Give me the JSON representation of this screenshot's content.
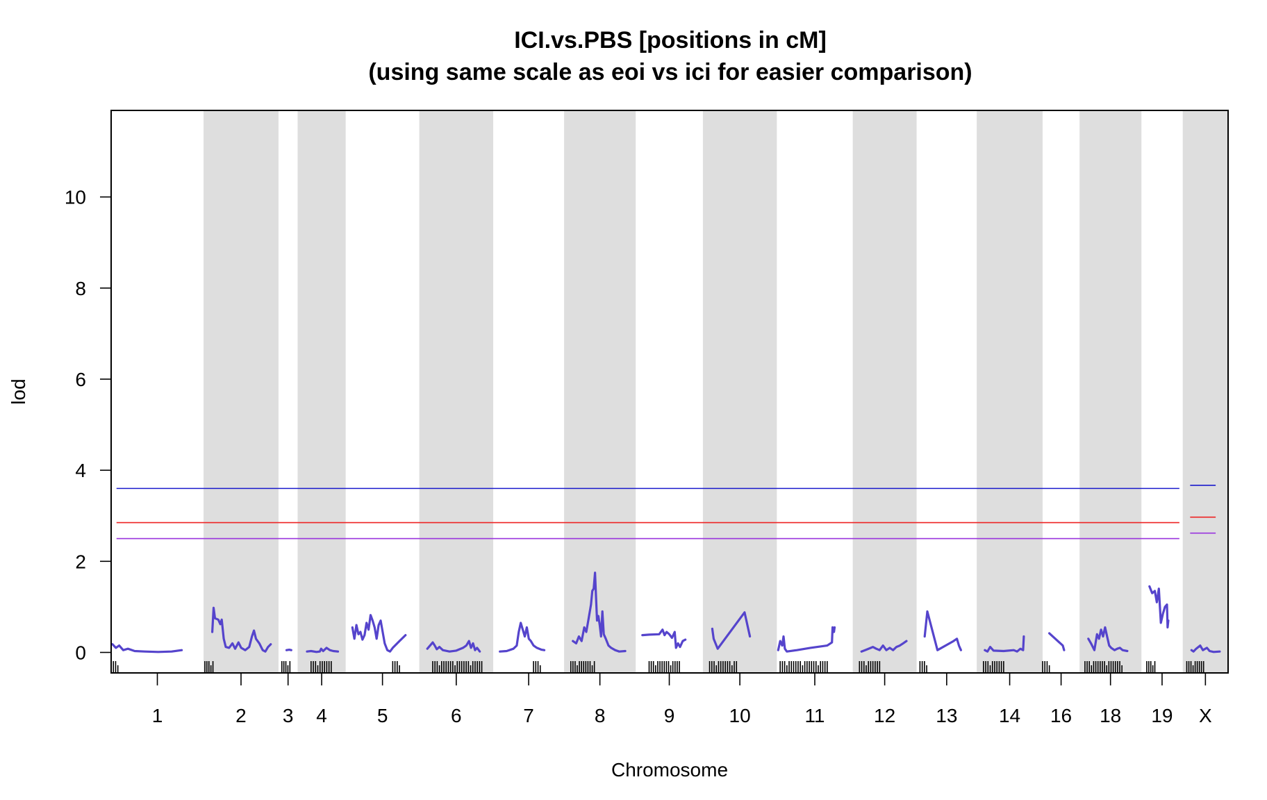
{
  "chart_data": {
    "type": "line",
    "title": "ICI.vs.PBS [positions in cM]",
    "subtitle": "(using same scale as eoi vs ici for easier comparison)",
    "xlabel": "Chromosome",
    "ylabel": "lod",
    "ylim": [
      -0.45,
      11.9
    ],
    "yticks": [
      0,
      2,
      4,
      6,
      8,
      10
    ],
    "grid": false,
    "line_color": "#5544cc",
    "band_color": "#dedede",
    "threshold_colors": [
      "#1a1acc",
      "#ee2222",
      "#9933dd"
    ],
    "chromosomes": [
      {
        "label": "1",
        "start": 0,
        "end": 13.75,
        "shaded": false,
        "points": [
          [
            0.2,
            0.18
          ],
          [
            0.7,
            0.1
          ],
          [
            1.2,
            0.15
          ],
          [
            1.8,
            0.05
          ],
          [
            2.5,
            0.08
          ],
          [
            3.5,
            0.03
          ],
          [
            5,
            0.02
          ],
          [
            7,
            0.01
          ],
          [
            9,
            0.02
          ],
          [
            10.5,
            0.05
          ]
        ]
      },
      {
        "label": "2",
        "start": 13.75,
        "end": 24.9,
        "shaded": true,
        "points": [
          [
            1.3,
            0.45
          ],
          [
            1.5,
            0.98
          ],
          [
            1.7,
            0.75
          ],
          [
            2.2,
            0.72
          ],
          [
            2.5,
            0.62
          ],
          [
            2.7,
            0.72
          ],
          [
            3.0,
            0.3
          ],
          [
            3.3,
            0.12
          ],
          [
            3.8,
            0.1
          ],
          [
            4.3,
            0.2
          ],
          [
            4.7,
            0.08
          ],
          [
            5.2,
            0.22
          ],
          [
            5.6,
            0.1
          ],
          [
            6.2,
            0.05
          ],
          [
            6.8,
            0.12
          ],
          [
            7.2,
            0.35
          ],
          [
            7.5,
            0.48
          ],
          [
            7.8,
            0.3
          ],
          [
            8.3,
            0.2
          ],
          [
            8.8,
            0.05
          ],
          [
            9.2,
            0.02
          ],
          [
            9.6,
            0.12
          ],
          [
            10,
            0.18
          ]
        ]
      },
      {
        "label": "3",
        "start": 24.9,
        "end": 27.75,
        "shaded": false,
        "points": [
          [
            1.2,
            0.05
          ],
          [
            1.6,
            0.06
          ],
          [
            1.9,
            0.05
          ]
        ]
      },
      {
        "label": "4",
        "start": 27.75,
        "end": 34.9,
        "shaded": true,
        "points": [
          [
            1.4,
            0.02
          ],
          [
            2.0,
            0.03
          ],
          [
            2.8,
            0.01
          ],
          [
            3.3,
            0.02
          ],
          [
            3.5,
            0.08
          ],
          [
            3.8,
            0.03
          ],
          [
            4.3,
            0.1
          ],
          [
            4.8,
            0.05
          ],
          [
            5.3,
            0.03
          ],
          [
            6.0,
            0.02
          ]
        ]
      },
      {
        "label": "5",
        "start": 34.9,
        "end": 45.85,
        "shaded": false,
        "points": [
          [
            1.0,
            0.55
          ],
          [
            1.3,
            0.3
          ],
          [
            1.6,
            0.6
          ],
          [
            1.9,
            0.4
          ],
          [
            2.2,
            0.45
          ],
          [
            2.5,
            0.28
          ],
          [
            2.8,
            0.38
          ],
          [
            3.1,
            0.65
          ],
          [
            3.4,
            0.5
          ],
          [
            3.7,
            0.82
          ],
          [
            4.0,
            0.7
          ],
          [
            4.3,
            0.55
          ],
          [
            4.6,
            0.3
          ],
          [
            4.9,
            0.6
          ],
          [
            5.2,
            0.7
          ],
          [
            5.5,
            0.45
          ],
          [
            5.8,
            0.2
          ],
          [
            6.2,
            0.05
          ],
          [
            6.6,
            0.02
          ],
          [
            7.0,
            0.1
          ],
          [
            8.0,
            0.25
          ],
          [
            8.9,
            0.38
          ]
        ]
      },
      {
        "label": "6",
        "start": 45.85,
        "end": 56.85,
        "shaded": true,
        "points": [
          [
            1.2,
            0.08
          ],
          [
            2.0,
            0.22
          ],
          [
            2.3,
            0.15
          ],
          [
            2.6,
            0.07
          ],
          [
            3.0,
            0.12
          ],
          [
            3.5,
            0.05
          ],
          [
            4.5,
            0.02
          ],
          [
            5.5,
            0.04
          ],
          [
            6.5,
            0.1
          ],
          [
            7.0,
            0.15
          ],
          [
            7.4,
            0.25
          ],
          [
            7.7,
            0.1
          ],
          [
            8.0,
            0.2
          ],
          [
            8.3,
            0.05
          ],
          [
            8.6,
            0.1
          ],
          [
            9.0,
            0.02
          ]
        ]
      },
      {
        "label": "7",
        "start": 56.85,
        "end": 67.4,
        "shaded": false,
        "points": [
          [
            1.0,
            0.02
          ],
          [
            2.0,
            0.03
          ],
          [
            3.0,
            0.08
          ],
          [
            3.5,
            0.15
          ],
          [
            3.8,
            0.45
          ],
          [
            4.1,
            0.65
          ],
          [
            4.4,
            0.5
          ],
          [
            4.7,
            0.35
          ],
          [
            5.0,
            0.55
          ],
          [
            5.3,
            0.3
          ],
          [
            5.6,
            0.25
          ],
          [
            6.0,
            0.15
          ],
          [
            6.5,
            0.1
          ],
          [
            7.2,
            0.06
          ],
          [
            7.6,
            0.05
          ]
        ]
      },
      {
        "label": "8",
        "start": 67.4,
        "end": 78.05,
        "shaded": true,
        "points": [
          [
            1.3,
            0.25
          ],
          [
            1.8,
            0.2
          ],
          [
            2.2,
            0.35
          ],
          [
            2.6,
            0.25
          ],
          [
            3.0,
            0.55
          ],
          [
            3.3,
            0.45
          ],
          [
            3.6,
            0.7
          ],
          [
            4.0,
            1.05
          ],
          [
            4.2,
            1.35
          ],
          [
            4.4,
            1.4
          ],
          [
            4.6,
            1.75
          ],
          [
            4.75,
            1.2
          ],
          [
            4.9,
            0.7
          ],
          [
            5.1,
            0.8
          ],
          [
            5.3,
            0.6
          ],
          [
            5.5,
            0.35
          ],
          [
            5.7,
            0.9
          ],
          [
            5.9,
            0.4
          ],
          [
            6.2,
            0.3
          ],
          [
            6.6,
            0.15
          ],
          [
            7.0,
            0.1
          ],
          [
            7.6,
            0.05
          ],
          [
            8.2,
            0.02
          ],
          [
            9.1,
            0.03
          ]
        ]
      },
      {
        "label": "9",
        "start": 78.05,
        "end": 88.05,
        "shaded": false,
        "points": [
          [
            1.0,
            0.38
          ],
          [
            2.0,
            0.39
          ],
          [
            3.5,
            0.4
          ],
          [
            4.0,
            0.5
          ],
          [
            4.3,
            0.38
          ],
          [
            4.6,
            0.45
          ],
          [
            5.0,
            0.4
          ],
          [
            5.4,
            0.32
          ],
          [
            5.8,
            0.45
          ],
          [
            6.0,
            0.1
          ],
          [
            6.3,
            0.2
          ],
          [
            6.6,
            0.12
          ],
          [
            7.0,
            0.25
          ],
          [
            7.4,
            0.28
          ]
        ]
      },
      {
        "label": "10",
        "start": 88.05,
        "end": 99.05,
        "shaded": true,
        "points": [
          [
            1.4,
            0.52
          ],
          [
            1.6,
            0.3
          ],
          [
            2.2,
            0.08
          ],
          [
            6.2,
            0.88
          ],
          [
            7.0,
            0.35
          ]
        ]
      },
      {
        "label": "11",
        "start": 99.05,
        "end": 110.35,
        "shaded": false,
        "points": [
          [
            0.2,
            0.05
          ],
          [
            0.5,
            0.25
          ],
          [
            0.8,
            0.15
          ],
          [
            1.0,
            0.35
          ],
          [
            1.2,
            0.08
          ],
          [
            1.5,
            0.02
          ],
          [
            3.0,
            0.05
          ],
          [
            5.0,
            0.1
          ],
          [
            7.5,
            0.15
          ],
          [
            8.2,
            0.22
          ],
          [
            8.3,
            0.55
          ],
          [
            8.5,
            0.45
          ],
          [
            8.6,
            0.55
          ]
        ]
      },
      {
        "label": "12",
        "start": 110.35,
        "end": 119.85,
        "shaded": true,
        "points": [
          [
            1.3,
            0.02
          ],
          [
            2.0,
            0.06
          ],
          [
            3.0,
            0.12
          ],
          [
            3.5,
            0.08
          ],
          [
            4.0,
            0.05
          ],
          [
            4.5,
            0.15
          ],
          [
            5.0,
            0.05
          ],
          [
            5.5,
            0.1
          ],
          [
            6.0,
            0.05
          ],
          [
            6.5,
            0.12
          ],
          [
            7.0,
            0.15
          ],
          [
            7.5,
            0.2
          ],
          [
            8.0,
            0.25
          ]
        ]
      },
      {
        "label": "13",
        "start": 119.85,
        "end": 128.8,
        "shaded": false,
        "points": [
          [
            1.2,
            0.35
          ],
          [
            1.6,
            0.9
          ],
          [
            3.1,
            0.05
          ],
          [
            5.5,
            0.25
          ],
          [
            6.0,
            0.3
          ],
          [
            6.3,
            0.15
          ],
          [
            6.6,
            0.05
          ]
        ]
      },
      {
        "label": "14",
        "start": 128.8,
        "end": 138.6,
        "shaded": true,
        "points": [
          [
            1.2,
            0.05
          ],
          [
            1.6,
            0.02
          ],
          [
            2.0,
            0.12
          ],
          [
            2.5,
            0.04
          ],
          [
            4.0,
            0.03
          ],
          [
            5.5,
            0.05
          ],
          [
            6.0,
            0.02
          ],
          [
            6.5,
            0.08
          ],
          [
            6.9,
            0.05
          ],
          [
            7.0,
            0.35
          ]
        ]
      },
      {
        "label": "16",
        "start": 138.6,
        "end": 144.1,
        "shaded": false,
        "points": [
          [
            1.0,
            0.42
          ],
          [
            3.0,
            0.15
          ],
          [
            3.2,
            0.05
          ]
        ]
      },
      {
        "label": "18",
        "start": 144.1,
        "end": 153.3,
        "shaded": true,
        "points": [
          [
            1.3,
            0.3
          ],
          [
            1.7,
            0.2
          ],
          [
            2.2,
            0.05
          ],
          [
            2.6,
            0.4
          ],
          [
            2.9,
            0.3
          ],
          [
            3.2,
            0.5
          ],
          [
            3.5,
            0.35
          ],
          [
            3.8,
            0.55
          ],
          [
            4.1,
            0.35
          ],
          [
            4.4,
            0.15
          ],
          [
            4.7,
            0.1
          ],
          [
            5.2,
            0.05
          ],
          [
            5.6,
            0.08
          ],
          [
            6.0,
            0.1
          ],
          [
            6.4,
            0.05
          ],
          [
            7.1,
            0.03
          ]
        ]
      },
      {
        "label": "19",
        "start": 153.3,
        "end": 159.45,
        "shaded": false,
        "points": [
          [
            1.2,
            1.45
          ],
          [
            1.6,
            1.3
          ],
          [
            2.0,
            1.35
          ],
          [
            2.3,
            1.1
          ],
          [
            2.6,
            1.4
          ],
          [
            2.9,
            0.65
          ],
          [
            3.2,
            0.85
          ],
          [
            3.5,
            1.0
          ],
          [
            3.8,
            1.05
          ],
          [
            3.9,
            0.55
          ],
          [
            4.0,
            0.7
          ]
        ]
      },
      {
        "label": "X",
        "start": 159.45,
        "end": 166.2,
        "shaded": true,
        "points": [
          [
            1.3,
            0.05
          ],
          [
            1.6,
            0.02
          ],
          [
            2.0,
            0.08
          ],
          [
            2.6,
            0.15
          ],
          [
            3.0,
            0.05
          ],
          [
            3.6,
            0.1
          ],
          [
            4.0,
            0.03
          ],
          [
            4.6,
            0.01
          ],
          [
            5.5,
            0.02
          ]
        ]
      }
    ],
    "marker_ticks": [
      [
        0,
        1
      ],
      [
        0.2,
        1.4
      ],
      [
        0.5,
        1.7
      ],
      [
        2,
        5
      ],
      [
        7,
        8
      ],
      [
        2,
        9.3
      ],
      [
        6,
        7
      ],
      [
        1,
        4.5
      ],
      [
        2,
        6.5
      ],
      [
        1,
        5
      ],
      [
        0.5,
        7.5
      ],
      [
        1,
        4
      ],
      [
        0.5,
        1.5
      ],
      [
        1,
        4
      ],
      [
        0,
        1
      ],
      [
        0.8,
        6.3
      ],
      [
        0.8,
        2
      ],
      [
        0.6,
        3.1
      ]
    ],
    "autosome_thresholds": [
      3.6,
      2.85,
      2.5
    ],
    "x_thresholds": [
      3.67,
      2.97,
      2.62
    ]
  }
}
